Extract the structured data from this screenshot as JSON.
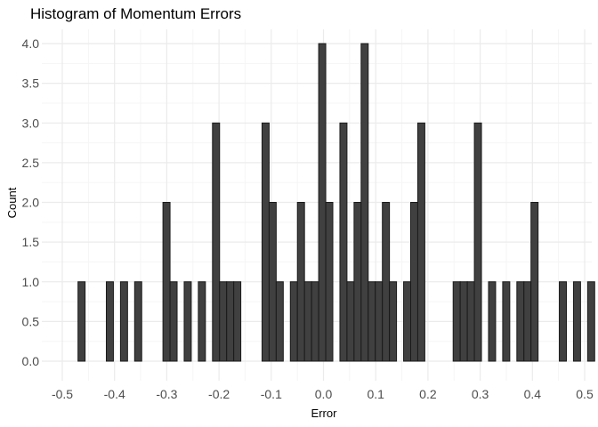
{
  "chart_data": {
    "type": "bar",
    "title": "Histogram of Momentum Errors",
    "xlabel": "Error",
    "ylabel": "Count",
    "xlim": [
      -0.5,
      0.5
    ],
    "ylim": [
      0,
      4
    ],
    "x_ticks": [
      "-0.5",
      "-0.4",
      "-0.3",
      "-0.2",
      "-0.1",
      "0.0",
      "0.1",
      "0.2",
      "0.3",
      "0.4",
      "0.5"
    ],
    "y_ticks": [
      "0.0",
      "0.5",
      "1.0",
      "1.5",
      "2.0",
      "2.5",
      "3.0",
      "3.5",
      "4.0"
    ],
    "x_tick_values": [
      -0.5,
      -0.4,
      -0.3,
      -0.2,
      -0.1,
      0.0,
      0.1,
      0.2,
      0.3,
      0.4,
      0.5
    ],
    "y_tick_values": [
      0,
      0.5,
      1,
      1.5,
      2,
      2.5,
      3,
      3.5,
      4
    ],
    "bin_start": -0.4699,
    "bin_width": 0.01355,
    "counts": [
      1,
      0,
      0,
      0,
      1,
      0,
      1,
      0,
      1,
      0,
      0,
      0,
      2,
      1,
      0,
      1,
      0,
      1,
      0,
      3,
      1,
      1,
      1,
      0,
      0,
      0,
      3,
      2,
      1,
      0,
      1,
      2,
      1,
      1,
      4,
      2,
      0,
      3,
      1,
      2,
      4,
      1,
      1,
      2,
      1,
      0,
      1,
      2,
      3,
      0,
      0,
      0,
      0,
      1,
      1,
      1,
      3,
      0,
      1,
      0,
      1,
      0,
      1,
      1,
      2,
      0,
      0,
      0,
      1,
      0,
      1,
      0,
      1,
      0,
      0,
      0,
      1
    ],
    "colors": {
      "bar_fill": "#404040",
      "bar_stroke": "#1a1a1a",
      "grid_major": "#ebebeb",
      "grid_minor": "#f5f5f5",
      "background": "#ffffff"
    },
    "grid": true,
    "legend": "none"
  }
}
